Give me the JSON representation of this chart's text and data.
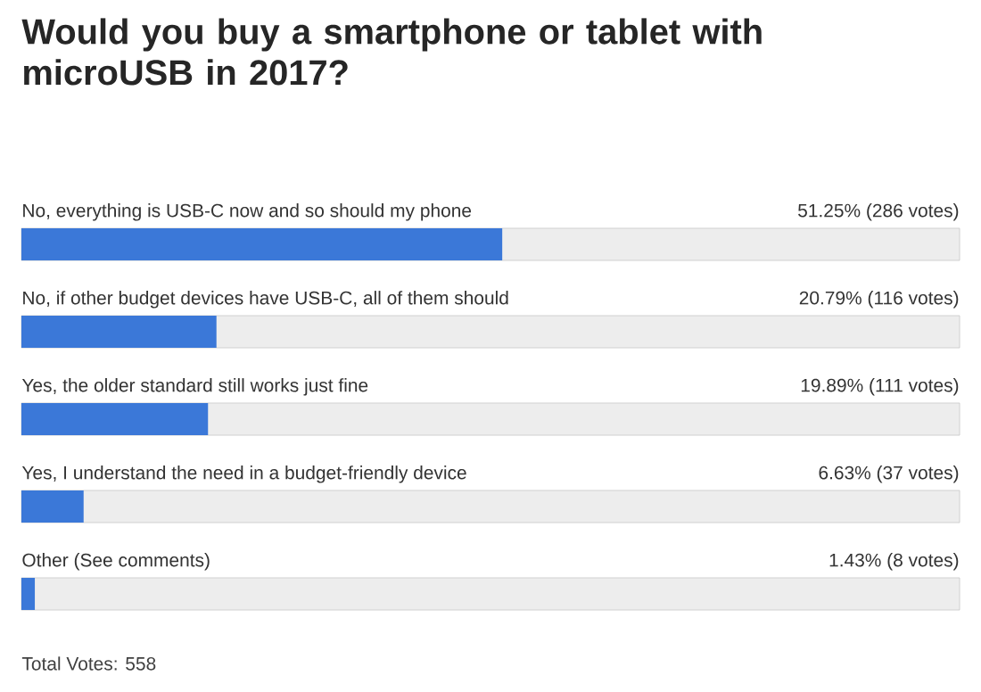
{
  "chart_data": {
    "type": "bar",
    "orientation": "horizontal",
    "title": "Would you buy a smartphone or tablet with microUSB in 2017?",
    "categories": [
      "No, everything is USB-C now and so should my phone",
      "No, if other budget devices have USB-C, all of them should",
      "Yes, the older standard still works just fine",
      "Yes, I understand the need in a budget-friendly device",
      "Other (See comments)"
    ],
    "values": [
      51.25,
      20.79,
      19.89,
      6.63,
      1.43
    ],
    "value_labels": [
      "51.25%  (286 votes)",
      "20.79%  (116 votes)",
      "19.89%  (111 votes)",
      "6.63%  (37 votes)",
      "1.43%  (8 votes)"
    ],
    "color": "#3b78d8",
    "xlim": [
      0,
      100
    ],
    "annotations": [
      "Total Votes: 558"
    ]
  }
}
